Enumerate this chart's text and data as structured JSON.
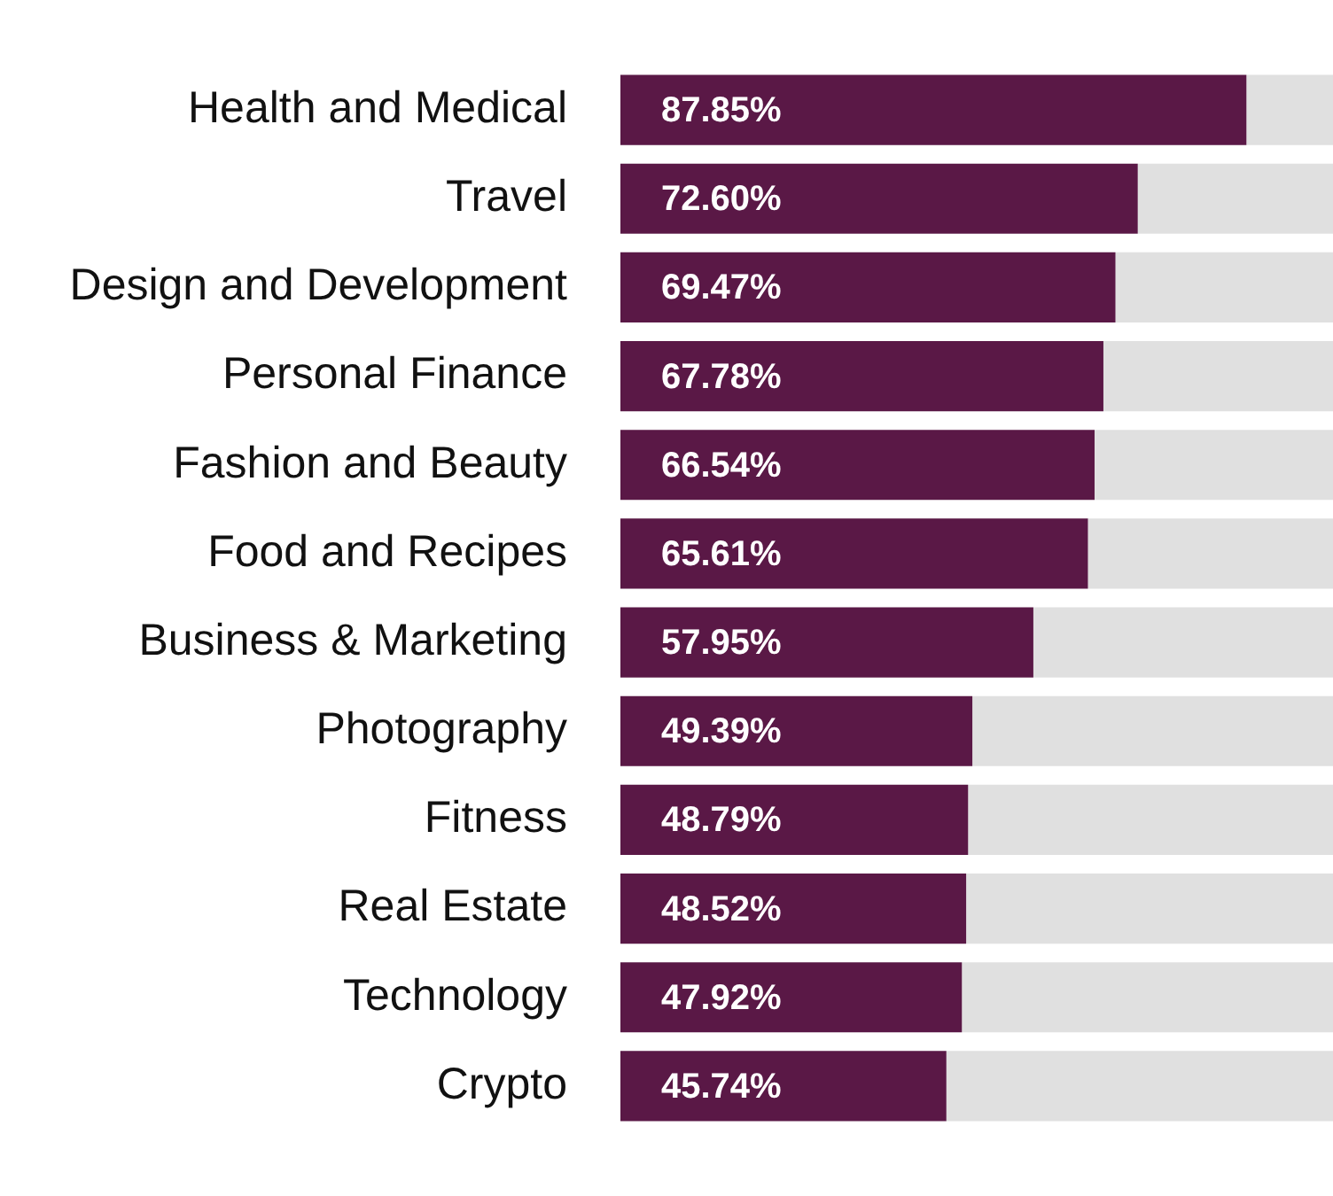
{
  "chart_data": {
    "type": "bar",
    "orientation": "horizontal",
    "categories": [
      "Health and Medical",
      "Travel",
      "Design and Development",
      "Personal Finance",
      "Fashion and Beauty",
      "Food and Recipes",
      "Business & Marketing",
      "Photography",
      "Fitness",
      "Real Estate",
      "Technology",
      "Crypto"
    ],
    "series": [
      {
        "color": "#5a1846",
        "values": [
          87.85,
          72.6,
          69.47,
          67.78,
          66.54,
          65.61,
          57.95,
          49.39,
          48.79,
          48.52,
          47.92,
          45.74
        ],
        "value_labels": [
          "87.85%",
          "72.60%",
          "69.47%",
          "67.78%",
          "66.54%",
          "65.61%",
          "57.95%",
          "49.39%",
          "48.79%",
          "48.52%",
          "47.92%",
          "45.74%"
        ]
      },
      {
        "color": "#e0e0e0",
        "values": [
          12.15,
          27.4,
          30.53,
          32.22,
          33.46,
          34.39,
          42.05,
          50.61,
          51.21,
          51.48,
          52.08,
          54.26
        ]
      }
    ],
    "stacked": true,
    "xlim": [
      0,
      100
    ],
    "tick_labels": "y"
  }
}
